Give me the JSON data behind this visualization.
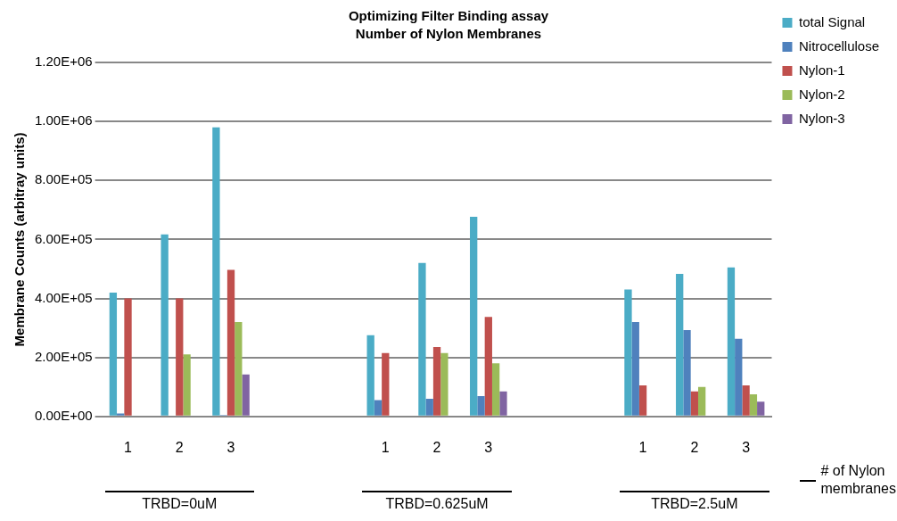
{
  "chart_data": {
    "type": "bar",
    "title": "Optimizing Filter Binding assay",
    "subtitle": "Number of Nylon Membranes",
    "ylabel": "Membrane Counts (arbitray units)",
    "categories": [
      "1",
      "2",
      "3",
      null,
      null,
      "1",
      "2",
      "3",
      null,
      null,
      "1",
      "2",
      "3"
    ],
    "series": [
      {
        "name": "total Signal",
        "color": "#4bacc6",
        "values": [
          420000,
          617000,
          980000,
          null,
          null,
          275000,
          520000,
          677000,
          null,
          null,
          430000,
          483000,
          505000
        ]
      },
      {
        "name": "Nitrocellulose",
        "color": "#4f81bd",
        "values": [
          10000,
          null,
          5000,
          null,
          null,
          55000,
          60000,
          69000,
          null,
          null,
          320000,
          293000,
          263000
        ]
      },
      {
        "name": "Nylon-1",
        "color": "#c0504d",
        "values": [
          400000,
          400000,
          497000,
          null,
          null,
          215000,
          235000,
          337000,
          null,
          null,
          105000,
          85000,
          105000
        ]
      },
      {
        "name": "Nylon-2",
        "color": "#9bbb59",
        "values": [
          null,
          210000,
          320000,
          null,
          null,
          null,
          215000,
          180000,
          null,
          null,
          null,
          100000,
          75000
        ]
      },
      {
        "name": "Nylon-3",
        "color": "#8064a2",
        "values": [
          null,
          null,
          142000,
          null,
          null,
          null,
          null,
          85000,
          null,
          null,
          null,
          null,
          50000
        ]
      }
    ],
    "ylim": [
      0,
      1200000
    ],
    "yticks": [
      {
        "value": 0,
        "label": "0.00E+00"
      },
      {
        "value": 200000,
        "label": "2.00E+05"
      },
      {
        "value": 400000,
        "label": "4.00E+05"
      },
      {
        "value": 600000,
        "label": "6.00E+05"
      },
      {
        "value": 800000,
        "label": "8.00E+05"
      },
      {
        "value": 1000000,
        "label": "1.00E+06"
      },
      {
        "value": 1200000,
        "label": "1.20E+06"
      }
    ],
    "grid": "y",
    "legend": "right",
    "annotations": [
      "TRBD=0uM",
      "TRBD=0.625uM",
      "TRBD=2.5uM",
      "# of Nylon membranes"
    ]
  }
}
